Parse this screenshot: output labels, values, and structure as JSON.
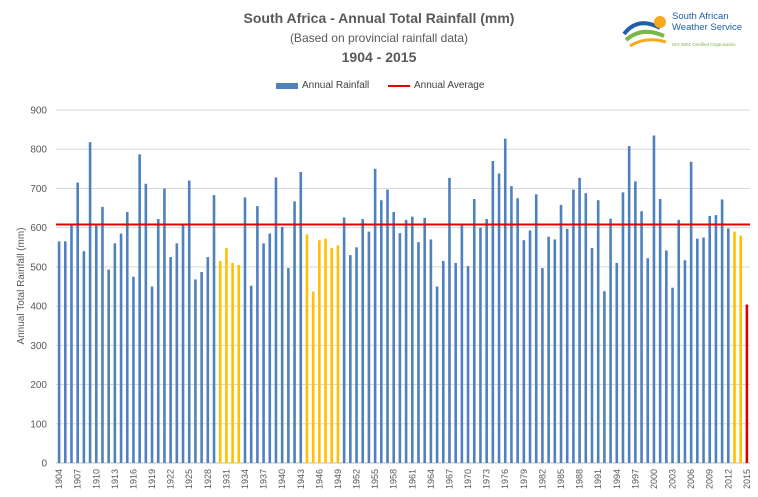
{
  "chart_data": {
    "type": "bar",
    "title": "South Africa - Annual Total Rainfall (mm)",
    "subtitle": "(Based on provincial rainfall data)",
    "period": "1904 - 2015",
    "ylabel": "Annual Total Rainfall (mm)",
    "xlabel": "",
    "ylim": [
      0,
      900
    ],
    "yticks": [
      0,
      100,
      200,
      300,
      400,
      500,
      600,
      700,
      800,
      900
    ],
    "grid": true,
    "legend_position": "top",
    "legend": [
      "Annual Rainfall",
      "Annual Average"
    ],
    "average": 608,
    "x_tick_labels": [
      "1904",
      "1907",
      "1910",
      "1913",
      "1916",
      "1919",
      "1922",
      "1925",
      "1928",
      "1931",
      "1934",
      "1937",
      "1940",
      "1943",
      "1946",
      "1949",
      "1952",
      "1955",
      "1958",
      "1961",
      "1964",
      "1967",
      "1970",
      "1973",
      "1976",
      "1979",
      "1982",
      "1985",
      "1988",
      "1991",
      "1994",
      "1997",
      "2000",
      "2003",
      "2006",
      "2009",
      "2012",
      "2015"
    ],
    "years": [
      1904,
      1905,
      1906,
      1907,
      1908,
      1909,
      1910,
      1911,
      1912,
      1913,
      1914,
      1915,
      1916,
      1917,
      1918,
      1919,
      1920,
      1921,
      1922,
      1923,
      1924,
      1925,
      1926,
      1927,
      1928,
      1929,
      1930,
      1931,
      1932,
      1933,
      1934,
      1935,
      1936,
      1937,
      1938,
      1939,
      1940,
      1941,
      1942,
      1943,
      1944,
      1945,
      1946,
      1947,
      1948,
      1949,
      1950,
      1951,
      1952,
      1953,
      1954,
      1955,
      1956,
      1957,
      1958,
      1959,
      1960,
      1961,
      1962,
      1963,
      1964,
      1965,
      1966,
      1967,
      1968,
      1969,
      1970,
      1971,
      1972,
      1973,
      1974,
      1975,
      1976,
      1977,
      1978,
      1979,
      1980,
      1981,
      1982,
      1983,
      1984,
      1985,
      1986,
      1987,
      1988,
      1989,
      1990,
      1991,
      1992,
      1993,
      1994,
      1995,
      1996,
      1997,
      1998,
      1999,
      2000,
      2001,
      2002,
      2003,
      2004,
      2005,
      2006,
      2007,
      2008,
      2009,
      2010,
      2011,
      2012,
      2013,
      2014,
      2015
    ],
    "values": [
      565,
      565,
      610,
      715,
      540,
      818,
      605,
      653,
      493,
      560,
      585,
      640,
      475,
      787,
      712,
      450,
      622,
      700,
      525,
      560,
      610,
      720,
      468,
      487,
      525,
      683,
      515,
      548,
      510,
      505,
      677,
      452,
      655,
      560,
      585,
      728,
      602,
      497,
      667,
      742,
      583,
      437,
      568,
      572,
      548,
      555,
      626,
      530,
      550,
      622,
      590,
      750,
      670,
      697,
      640,
      586,
      620,
      628,
      563,
      625,
      570,
      450,
      515,
      727,
      510,
      608,
      502,
      673,
      600,
      622,
      770,
      738,
      827,
      706,
      675,
      568,
      593,
      685,
      497,
      577,
      570,
      658,
      597,
      697,
      727,
      688,
      548,
      670,
      438,
      623,
      510,
      690,
      808,
      718,
      642,
      522,
      835,
      673,
      542,
      447,
      620,
      517,
      768,
      572,
      575,
      630,
      632,
      672,
      598,
      590,
      580,
      404
    ],
    "colors": {
      "normal": "#4f81bd",
      "highlight": "#ffc000",
      "current": "#e00000",
      "average": "#e00000"
    },
    "highlight_years": [
      1930,
      1931,
      1932,
      1933,
      1944,
      1945,
      1946,
      1947,
      1948,
      1949,
      2013,
      2014
    ],
    "current_year": 2015
  },
  "logo": {
    "line1": "South African",
    "line2": "Weather Service",
    "tagline": "ISO 9001 Certified Organisation"
  }
}
